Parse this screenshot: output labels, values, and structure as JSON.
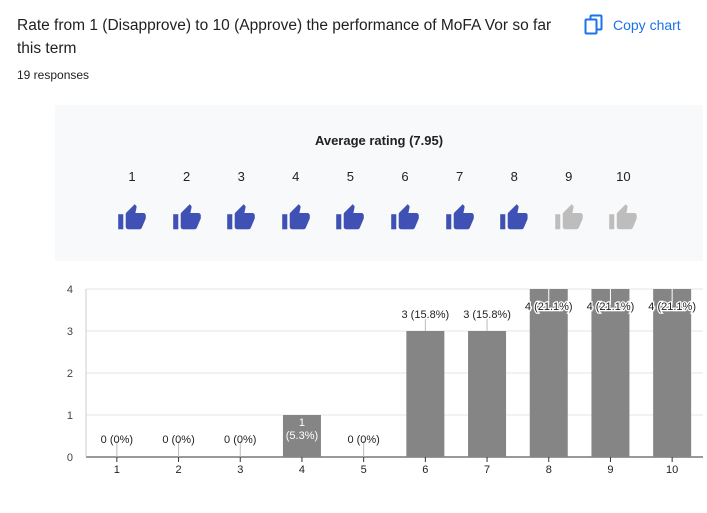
{
  "question": {
    "title": "Rate from 1 (Disapprove) to 10 (Approve) the performance of MoFA Vor so far this term",
    "responses": "19 responses"
  },
  "toolbar": {
    "copy_label": "Copy chart",
    "copy_icon": "copy-icon"
  },
  "rating": {
    "title": "Average rating (7.95)",
    "average": 7.95,
    "scale": [
      "1",
      "2",
      "3",
      "4",
      "5",
      "6",
      "7",
      "8",
      "9",
      "10"
    ],
    "icon": "thumb-up-icon",
    "filled_color": "#3f51b5",
    "empty_color": "#bdbdbd"
  },
  "chart_data": {
    "type": "bar",
    "categories": [
      "1",
      "2",
      "3",
      "4",
      "5",
      "6",
      "7",
      "8",
      "9",
      "10"
    ],
    "values": [
      0,
      0,
      0,
      1,
      0,
      3,
      3,
      4,
      4,
      4
    ],
    "data_labels": [
      "0 (0%)",
      "0 (0%)",
      "0 (0%)",
      "1 (5.3%)",
      "0 (0%)",
      "3 (15.8%)",
      "3 (15.8%)",
      "4 (21.1%)",
      "4 (21.1%)",
      "4 (21.1%)"
    ],
    "y_ticks": [
      "0",
      "1",
      "2",
      "3",
      "4"
    ],
    "ylim": [
      0,
      4
    ],
    "bar_color": "#858585",
    "grid": true
  }
}
